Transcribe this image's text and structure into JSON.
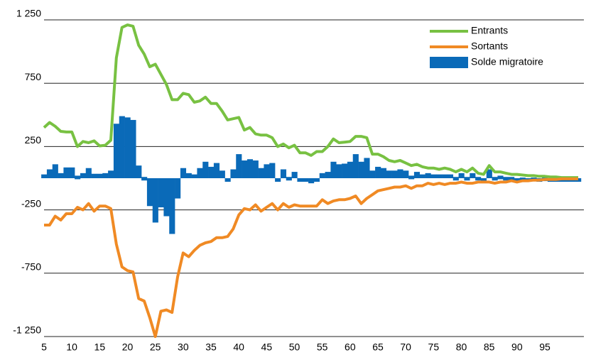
{
  "chart_data": {
    "type": "combo",
    "x": [
      5,
      6,
      7,
      8,
      9,
      10,
      11,
      12,
      13,
      14,
      15,
      16,
      17,
      18,
      19,
      20,
      21,
      22,
      23,
      24,
      25,
      26,
      27,
      28,
      29,
      30,
      31,
      32,
      33,
      34,
      35,
      36,
      37,
      38,
      39,
      40,
      41,
      42,
      43,
      44,
      45,
      46,
      47,
      48,
      49,
      50,
      51,
      52,
      53,
      54,
      55,
      56,
      57,
      58,
      59,
      60,
      61,
      62,
      63,
      64,
      65,
      66,
      67,
      68,
      69,
      70,
      71,
      72,
      73,
      74,
      75,
      76,
      77,
      78,
      79,
      80,
      81,
      82,
      83,
      84,
      85,
      86,
      87,
      88,
      89,
      90,
      91,
      92,
      93,
      94,
      95,
      96,
      97,
      98,
      99,
      100,
      101
    ],
    "xlim": [
      5,
      101
    ],
    "xticks": [
      5,
      10,
      15,
      20,
      25,
      30,
      35,
      40,
      45,
      50,
      55,
      60,
      65,
      70,
      75,
      80,
      85,
      90,
      95
    ],
    "ylim": [
      -1250,
      1250
    ],
    "yticks": [
      {
        "value": -1250,
        "label": "-1 250"
      },
      -750,
      -250,
      250,
      750,
      {
        "value": 1250,
        "label": "1 250"
      }
    ],
    "grid": true,
    "legend": "upper right",
    "series": [
      {
        "name": "Solde migratoire",
        "type": "bar",
        "color": "#0a6ab8",
        "values": [
          30,
          70,
          110,
          40,
          85,
          85,
          20,
          40,
          80,
          35,
          35,
          40,
          60,
          430,
          490,
          480,
          460,
          100,
          10,
          -220,
          -350,
          -230,
          -300,
          -440,
          -160,
          80,
          40,
          30,
          80,
          130,
          90,
          120,
          60,
          0,
          70,
          190,
          140,
          150,
          140,
          80,
          110,
          120,
          0,
          70,
          10,
          50,
          -20,
          -20,
          -40,
          -10,
          40,
          50,
          130,
          110,
          115,
          130,
          190,
          130,
          160,
          60,
          90,
          80,
          60,
          60,
          70,
          60,
          20,
          50,
          30,
          40,
          30,
          30,
          30,
          30,
          10,
          40,
          10,
          40,
          10,
          0,
          70,
          10,
          20,
          10,
          10,
          0,
          5,
          0,
          5,
          0,
          5,
          0,
          0,
          0,
          0,
          0,
          0
        ]
      },
      {
        "name": "Entrants",
        "type": "line",
        "color": "#78c142",
        "values": [
          400,
          440,
          410,
          370,
          365,
          365,
          250,
          290,
          280,
          295,
          255,
          260,
          300,
          950,
          1190,
          1210,
          1200,
          1050,
          980,
          880,
          900,
          820,
          740,
          620,
          620,
          670,
          660,
          600,
          610,
          640,
          590,
          590,
          530,
          460,
          470,
          480,
          380,
          400,
          350,
          340,
          340,
          320,
          250,
          270,
          240,
          260,
          200,
          200,
          180,
          210,
          210,
          250,
          310,
          280,
          285,
          290,
          330,
          330,
          320,
          190,
          190,
          170,
          140,
          130,
          140,
          120,
          100,
          110,
          90,
          80,
          80,
          70,
          80,
          70,
          50,
          70,
          50,
          80,
          40,
          30,
          100,
          50,
          50,
          40,
          30,
          30,
          25,
          20,
          20,
          15,
          15,
          10,
          10,
          5,
          5,
          5,
          5
        ]
      },
      {
        "name": "Sortants",
        "type": "line",
        "color": "#f08a24",
        "values": [
          -370,
          -370,
          -300,
          -330,
          -280,
          -280,
          -230,
          -250,
          -200,
          -260,
          -220,
          -220,
          -240,
          -520,
          -700,
          -730,
          -740,
          -950,
          -970,
          -1100,
          -1250,
          -1050,
          -1040,
          -1060,
          -780,
          -590,
          -620,
          -570,
          -530,
          -510,
          -500,
          -470,
          -470,
          -460,
          -400,
          -290,
          -240,
          -250,
          -210,
          -260,
          -230,
          -200,
          -250,
          -200,
          -230,
          -210,
          -220,
          -220,
          -220,
          -220,
          -170,
          -200,
          -180,
          -170,
          -170,
          -160,
          -140,
          -200,
          -160,
          -130,
          -100,
          -90,
          -80,
          -70,
          -70,
          -60,
          -80,
          -60,
          -60,
          -40,
          -50,
          -40,
          -50,
          -40,
          -40,
          -30,
          -40,
          -40,
          -30,
          -30,
          -30,
          -40,
          -30,
          -30,
          -20,
          -30,
          -20,
          -20,
          -15,
          -15,
          -10,
          -10,
          -10,
          -5,
          -5,
          -5,
          -5
        ]
      }
    ]
  }
}
